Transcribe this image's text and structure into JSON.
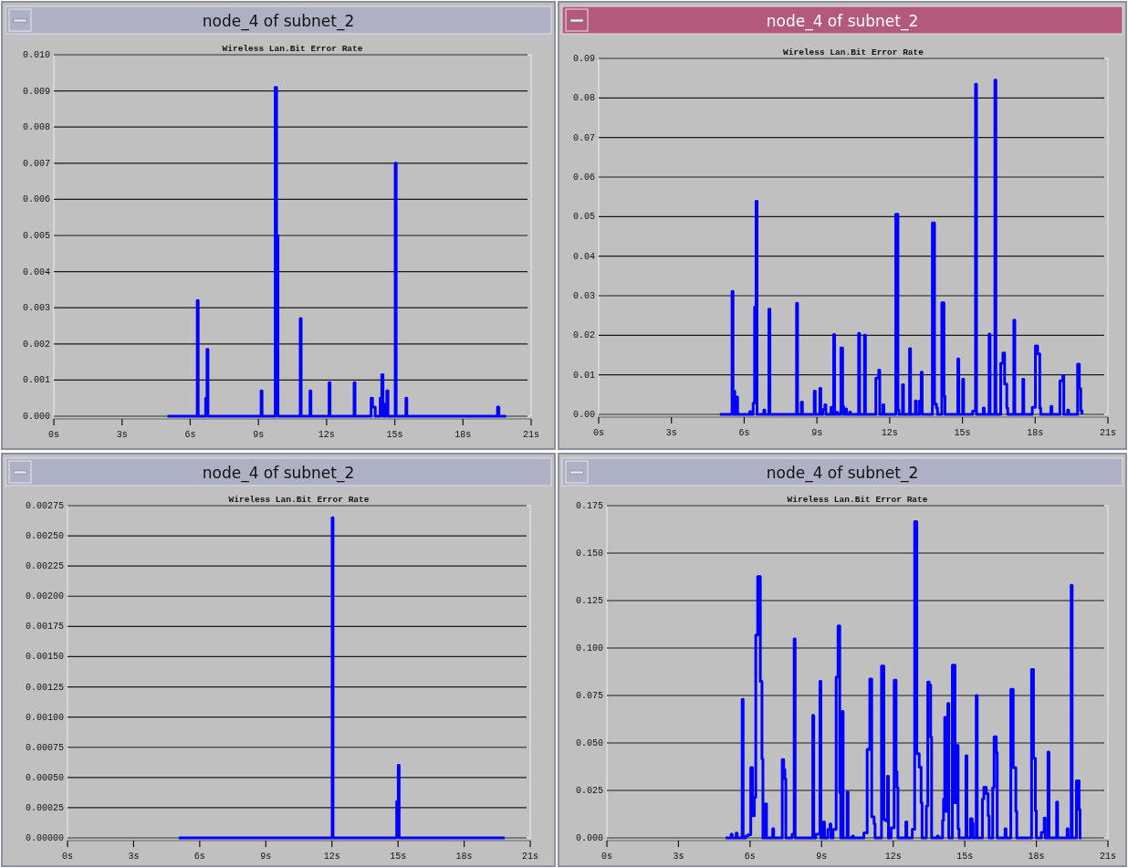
{
  "chart_data": [
    {
      "type": "step",
      "title": "node_4 of subnet_2",
      "subtitle": "Wireless Lan.Bit Error Rate",
      "grid": "y",
      "xlim": [
        0,
        21
      ],
      "xticks": [
        {
          "value": 0,
          "label": "0s"
        },
        {
          "value": 3,
          "label": "3s"
        },
        {
          "value": 6,
          "label": "6s"
        },
        {
          "value": 9,
          "label": "9s"
        },
        {
          "value": 12,
          "label": "12s"
        },
        {
          "value": 15,
          "label": "15s"
        },
        {
          "value": 18,
          "label": "18s"
        },
        {
          "value": 21,
          "label": "21s"
        }
      ],
      "ylim": [
        0,
        0.01
      ],
      "yticks": [
        {
          "value": 0,
          "label": "0.000"
        },
        {
          "value": 0.001,
          "label": "0.001"
        },
        {
          "value": 0.002,
          "label": "0.002"
        },
        {
          "value": 0.003,
          "label": "0.003"
        },
        {
          "value": 0.004,
          "label": "0.004"
        },
        {
          "value": 0.005,
          "label": "0.005"
        },
        {
          "value": 0.006,
          "label": "0.006"
        },
        {
          "value": 0.007,
          "label": "0.007"
        },
        {
          "value": 0.008,
          "label": "0.008"
        },
        {
          "value": 0.009,
          "label": "0.009"
        },
        {
          "value": 0.01,
          "label": "0.010"
        }
      ],
      "series": [
        {
          "color": "#0000ff",
          "x": [
            5,
            6.31,
            6.35,
            6.68,
            6.74,
            6.78,
            9.12,
            9.16,
            9.74,
            9.8,
            9.86,
            10.84,
            10.88,
            11.27,
            11.31,
            12.11,
            12.15,
            13.21,
            13.25,
            13.96,
            14.02,
            14.14,
            14.36,
            14.43,
            14.48,
            14.6,
            14.65,
            14.7,
            15.02,
            15.06,
            15.49,
            15.53,
            19.52,
            19.58,
            19.9
          ],
          "values": [
            0,
            0.0032,
            0,
            0.0005,
            0.00185,
            0,
            0.0007,
            0,
            0.0091,
            0.005,
            0,
            0.0027,
            0,
            0.0007,
            0,
            0.00093,
            0,
            0.00093,
            0,
            0.0005,
            0.00025,
            0,
            0.0005,
            0.00115,
            0,
            0.00035,
            0.0007,
            0,
            0.007,
            0,
            0.0005,
            0,
            0.00025,
            0,
            0
          ]
        }
      ]
    },
    {
      "type": "step",
      "title": "node_4 of subnet_2",
      "subtitle": "Wireless Lan.Bit Error Rate",
      "grid": "y",
      "xlim": [
        0,
        21
      ],
      "xticks": [
        {
          "value": 0,
          "label": "0s"
        },
        {
          "value": 3,
          "label": "3s"
        },
        {
          "value": 6,
          "label": "6s"
        },
        {
          "value": 9,
          "label": "9s"
        },
        {
          "value": 12,
          "label": "12s"
        },
        {
          "value": 15,
          "label": "15s"
        },
        {
          "value": 18,
          "label": "18s"
        },
        {
          "value": 21,
          "label": "21s"
        }
      ],
      "ylim": [
        0,
        0.09
      ],
      "yticks": [
        {
          "value": 0,
          "label": "0.00"
        },
        {
          "value": 0.01,
          "label": "0.01"
        },
        {
          "value": 0.02,
          "label": "0.02"
        },
        {
          "value": 0.03,
          "label": "0.03"
        },
        {
          "value": 0.04,
          "label": "0.04"
        },
        {
          "value": 0.05,
          "label": "0.05"
        },
        {
          "value": 0.06,
          "label": "0.06"
        },
        {
          "value": 0.07,
          "label": "0.07"
        },
        {
          "value": 0.08,
          "label": "0.08"
        },
        {
          "value": 0.09,
          "label": "0.09"
        }
      ],
      "series": [
        {
          "color": "#0000ff",
          "x": [
            5,
            5.5,
            5.54,
            5.57,
            5.61,
            5.69,
            5.73,
            6.23,
            6.27,
            6.37,
            6.43,
            6.49,
            6.53,
            6.81,
            6.85,
            7.02,
            7.06,
            8.16,
            8.2,
            8.36,
            8.4,
            8.89,
            8.93,
            9.12,
            9.16,
            9.24,
            9.33,
            9.37,
            9.58,
            9.62,
            9.69,
            9.73,
            9.82,
            9.86,
            9.99,
            10.06,
            10.1,
            10.18,
            10.22,
            10.35,
            10.39,
            10.72,
            10.76,
            10.96,
            11,
            11.43,
            11.55,
            11.59,
            11.72,
            11.76,
            12.25,
            12.34,
            12.38,
            12.53,
            12.57,
            12.82,
            12.86,
            13.06,
            13.1,
            13.23,
            13.3,
            13.34,
            13.76,
            13.85,
            13.93,
            13.97,
            14.15,
            14.24,
            14.28,
            14.81,
            14.85,
            15.01,
            15.05,
            15.42,
            15.54,
            15.58,
            15.86,
            15.9,
            16.1,
            16.14,
            16.34,
            16.38,
            16.58,
            16.67,
            16.74,
            16.83,
            16.87,
            17.12,
            17.16,
            17.49,
            17.53,
            17.88,
            18.01,
            18.1,
            18.19,
            18.23,
            18.65,
            18.69,
            19.02,
            19.14,
            19.18,
            19.34,
            19.38,
            19.75,
            19.82,
            19.88,
            19.93
          ],
          "values": [
            0,
            0.0311,
            0,
            0.0059,
            0,
            0.0044,
            0,
            0.0007,
            0,
            0.0028,
            0.0271,
            0.0539,
            0,
            0.0011,
            0,
            0.0266,
            0,
            0.0281,
            0,
            0.0031,
            0,
            0.0059,
            0,
            0.0066,
            0,
            0.0012,
            0.0024,
            0,
            0.0018,
            0,
            0.0202,
            0,
            0.0005,
            0,
            0.0168,
            0.0021,
            0,
            0.0014,
            0,
            0.0006,
            0,
            0.0205,
            0,
            0.02,
            0,
            0.0092,
            0.0112,
            0,
            0.0024,
            0,
            0.0506,
            0.0011,
            0,
            0.0075,
            0,
            0.0166,
            0,
            0.0034,
            0,
            0.0034,
            0.0107,
            0,
            0.0484,
            0.0026,
            0.0016,
            0,
            0.0282,
            0.0046,
            0,
            0.014,
            0,
            0.0089,
            0,
            0.0008,
            0.0835,
            0,
            0.0016,
            0,
            0.0203,
            0,
            0.0845,
            0,
            0.0129,
            0.0155,
            0.0077,
            0.0016,
            0,
            0.0238,
            0,
            0.0089,
            0,
            0.0018,
            0.0173,
            0.0153,
            0.0016,
            0,
            0.002,
            0,
            0.0085,
            0.0098,
            0,
            0.0011,
            0,
            0.0127,
            0.0065,
            0.0009,
            0
          ]
        }
      ]
    },
    {
      "type": "step",
      "title": "node_4 of subnet_2",
      "subtitle": "Wireless Lan.Bit Error Rate",
      "grid": "y",
      "xlim": [
        0,
        21
      ],
      "xticks": [
        {
          "value": 0,
          "label": "0s"
        },
        {
          "value": 3,
          "label": "3s"
        },
        {
          "value": 6,
          "label": "6s"
        },
        {
          "value": 9,
          "label": "9s"
        },
        {
          "value": 12,
          "label": "12s"
        },
        {
          "value": 15,
          "label": "15s"
        },
        {
          "value": 18,
          "label": "18s"
        },
        {
          "value": 21,
          "label": "21s"
        }
      ],
      "ylim": [
        0,
        0.00275
      ],
      "yticks": [
        {
          "value": 0,
          "label": "0.00000"
        },
        {
          "value": 0.00025,
          "label": "0.00025"
        },
        {
          "value": 0.0005,
          "label": "0.00050"
        },
        {
          "value": 0.00075,
          "label": "0.00075"
        },
        {
          "value": 0.001,
          "label": "0.00100"
        },
        {
          "value": 0.00125,
          "label": "0.00125"
        },
        {
          "value": 0.0015,
          "label": "0.00150"
        },
        {
          "value": 0.00175,
          "label": "0.00175"
        },
        {
          "value": 0.002,
          "label": "0.00200"
        },
        {
          "value": 0.00225,
          "label": "0.00225"
        },
        {
          "value": 0.0025,
          "label": "0.00250"
        },
        {
          "value": 0.00275,
          "label": "0.00275"
        }
      ],
      "series": [
        {
          "color": "#0000ff",
          "x": [
            5.05,
            12.01,
            12.05,
            14.94,
            15.01,
            15.05,
            19.84
          ],
          "values": [
            0,
            0.00265,
            0,
            0.0003,
            0.0006,
            0,
            0
          ]
        }
      ]
    },
    {
      "type": "step",
      "title": "node_4 of subnet_2",
      "subtitle": "Wireless Lan.Bit Error Rate",
      "grid": "y",
      "xlim": [
        0,
        21
      ],
      "xticks": [
        {
          "value": 0,
          "label": "0s"
        },
        {
          "value": 3,
          "label": "3s"
        },
        {
          "value": 6,
          "label": "6s"
        },
        {
          "value": 9,
          "label": "9s"
        },
        {
          "value": 12,
          "label": "12s"
        },
        {
          "value": 15,
          "label": "15s"
        },
        {
          "value": 18,
          "label": "18s"
        },
        {
          "value": 21,
          "label": "21s"
        }
      ],
      "ylim": [
        0,
        0.175
      ],
      "yticks": [
        {
          "value": 0,
          "label": "0.000"
        },
        {
          "value": 0.025,
          "label": "0.025"
        },
        {
          "value": 0.05,
          "label": "0.050"
        },
        {
          "value": 0.075,
          "label": "0.075"
        },
        {
          "value": 0.1,
          "label": "0.100"
        },
        {
          "value": 0.125,
          "label": "0.125"
        },
        {
          "value": 0.15,
          "label": "0.150"
        },
        {
          "value": 0.175,
          "label": "0.175"
        }
      ],
      "series": [
        {
          "color": "#0000ff",
          "x": [
            4.98,
            5.21,
            5.25,
            5.42,
            5.46,
            5.67,
            5.71,
            5.82,
            5.92,
            6.03,
            6.1,
            6.18,
            6.24,
            6.32,
            6.43,
            6.5,
            6.54,
            6.65,
            6.69,
            6.95,
            6.99,
            7.35,
            7.41,
            7.46,
            7.5,
            7.76,
            7.85,
            7.89,
            8.63,
            8.67,
            8.75,
            8.93,
            8.97,
            9.08,
            9.12,
            9.26,
            9.35,
            9.39,
            9.48,
            9.61,
            9.69,
            9.76,
            9.8,
            9.86,
            9.9,
            10.07,
            10.11,
            10.29,
            10.33,
            10.77,
            10.91,
            11.02,
            11.1,
            11.2,
            11.24,
            11.51,
            11.61,
            11.69,
            11.76,
            11.8,
            11.91,
            12.04,
            12.12,
            12.16,
            12.2,
            12.53,
            12.57,
            12.8,
            12.9,
            12.99,
            13.09,
            13.17,
            13.21,
            13.39,
            13.45,
            13.51,
            13.57,
            13.61,
            13.85,
            13.89,
            14.07,
            14.11,
            14.16,
            14.22,
            14.29,
            14.33,
            14.48,
            14.59,
            14.65,
            14.72,
            14.76,
            15.05,
            15.09,
            15.24,
            15.31,
            15.35,
            15.48,
            15.52,
            15.74,
            15.8,
            15.9,
            15.98,
            16.02,
            16.17,
            16.23,
            16.32,
            16.36,
            16.69,
            16.73,
            16.93,
            17.03,
            17.14,
            17.18,
            17.8,
            17.88,
            17.96,
            18,
            18.21,
            18.33,
            18.37,
            18.49,
            18.53,
            18.85,
            18.89,
            19.29,
            19.33,
            19.46,
            19.5,
            19.68,
            19.79,
            19.83,
            19.89
          ],
          "values": [
            0,
            0.0019,
            0,
            0.0025,
            0,
            0.0729,
            0,
            0.001,
            0.0017,
            0.037,
            0.0116,
            0.0214,
            0.1069,
            0.1376,
            0.0824,
            0.0416,
            0,
            0.0179,
            0,
            0.0048,
            0,
            0.0412,
            0.0361,
            0.0311,
            0,
            0.0019,
            0.1048,
            0,
            0.0645,
            0,
            0.0019,
            0.0824,
            0,
            0.0084,
            0,
            0.0044,
            0.0073,
            0,
            0.0044,
            0.0847,
            0.1116,
            0.0239,
            0,
            0.0666,
            0,
            0.0242,
            0,
            0.001,
            0,
            0.0027,
            0.0466,
            0.0836,
            0.0111,
            0.0074,
            0,
            0.0905,
            0.0097,
            0.009,
            0.0324,
            0,
            0.0053,
            0.083,
            0.0349,
            0.0265,
            0,
            0.0084,
            0,
            0.0046,
            0.1666,
            0.0443,
            0.0372,
            0.0185,
            0,
            0.0168,
            0.0821,
            0.0805,
            0.0531,
            0,
            0.001,
            0,
            0.0092,
            0.0206,
            0.0635,
            0.0139,
            0.0708,
            0,
            0.091,
            0.0185,
            0.0487,
            0.0048,
            0,
            0.0433,
            0,
            0.0101,
            0.0076,
            0,
            0.075,
            0,
            0.0206,
            0.0267,
            0.0233,
            0.0116,
            0,
            0.0265,
            0.0532,
            0.045,
            0,
            0.0048,
            0,
            0.0782,
            0.037,
            0.0141,
            0,
            0.0887,
            0.042,
            0.0143,
            0,
            0.0029,
            0.0105,
            0,
            0.0452,
            0,
            0.0189,
            0,
            0.0048,
            0,
            0.133,
            0,
            0.03,
            0.0149,
            0,
            0
          ]
        }
      ]
    }
  ]
}
